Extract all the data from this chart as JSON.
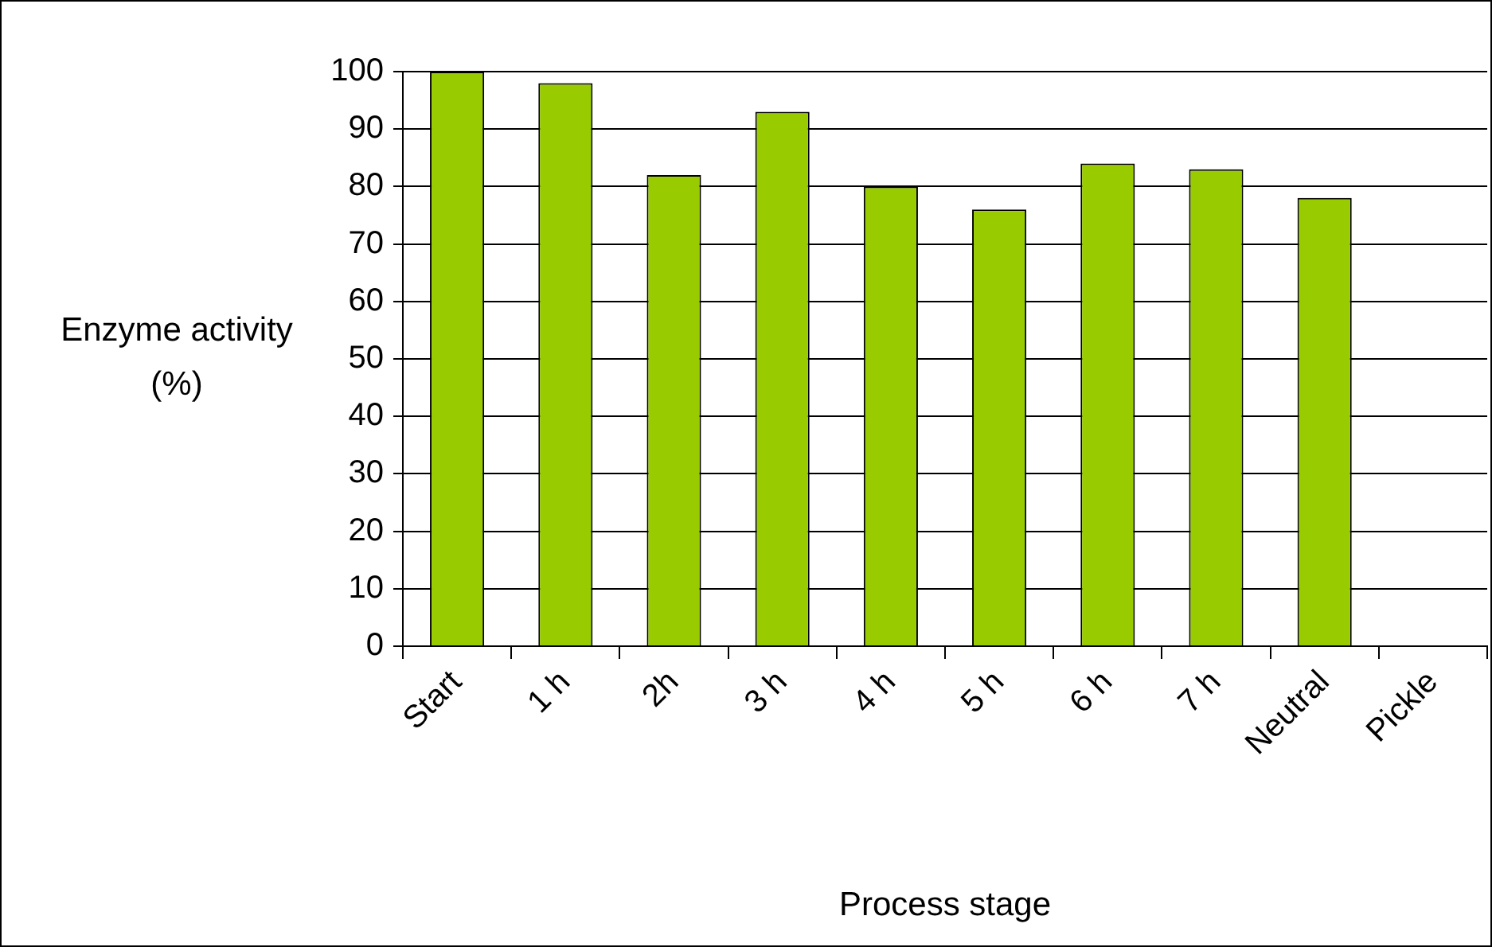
{
  "chart_data": {
    "type": "bar",
    "xlabel": "Process stage",
    "ylabel": "Enzyme activity (%)",
    "categories": [
      "Start",
      "1 h",
      "2h",
      "3 h",
      "4 h",
      "5 h",
      "6 h",
      "7 h",
      "Neutral",
      "Pickle"
    ],
    "values": [
      100,
      98,
      82,
      93,
      80,
      76,
      84,
      83,
      78,
      null
    ],
    "color": "#99cc00",
    "ylim": [
      0,
      100
    ],
    "yticks": [
      0,
      10,
      20,
      30,
      40,
      50,
      60,
      70,
      80,
      90,
      100
    ],
    "grid": "y",
    "legend": false
  }
}
